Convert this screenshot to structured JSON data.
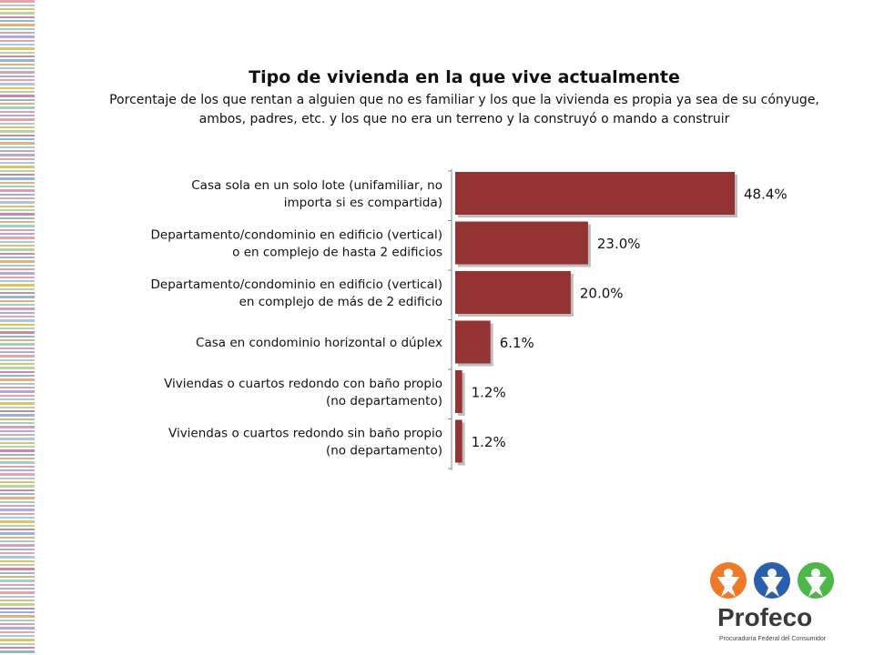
{
  "chart_data": {
    "type": "bar",
    "orientation": "horizontal",
    "title": "Tipo de vivienda en la que vive actualmente",
    "subtitle": "Porcentaje de los que rentan a alguien que no es familiar y los que la vivienda es propia ya sea de su cónyuge, ambos, padres, etc. y los que no era un terreno y la construyó o mando a construir",
    "categories": [
      [
        "Casa sola en un solo lote (unifamiliar, no",
        "importa si es compartida)"
      ],
      [
        "Departamento/condominio en edificio (vertical)",
        "o en complejo de hasta 2 edificios"
      ],
      [
        "Departamento/condominio en edificio (vertical)",
        "en complejo de más de 2 edificio"
      ],
      [
        "Casa en condominio horizontal o dúplex"
      ],
      [
        "Viviendas o cuartos redondo con baño propio",
        "(no departamento)"
      ],
      [
        "Viviendas o cuartos redondo sin baño propio",
        "(no departamento)"
      ]
    ],
    "values": [
      48.4,
      23.0,
      20.0,
      6.1,
      1.2,
      1.2
    ],
    "value_labels": [
      "48.4%",
      "23.0%",
      "20.0%",
      "6.1%",
      "1.2%",
      "1.2%"
    ],
    "bar_color": "#933333",
    "xlim": [
      0,
      50
    ],
    "grid": false,
    "legend": "none"
  },
  "logo": {
    "name": "Profeco",
    "tagline": "Procuraduría Federal del Consumidor",
    "colors": [
      "#f07a2a",
      "#2a5fae",
      "#4db848"
    ]
  },
  "stripe_colors": [
    "#e8a3a8",
    "#a8c8e0",
    "#d9c46a",
    "#b7d4a0",
    "#c88aa4",
    "#93b4d6",
    "#e3b079",
    "#9fd0c4",
    "#d6a0b8",
    "#b0a8d8"
  ]
}
